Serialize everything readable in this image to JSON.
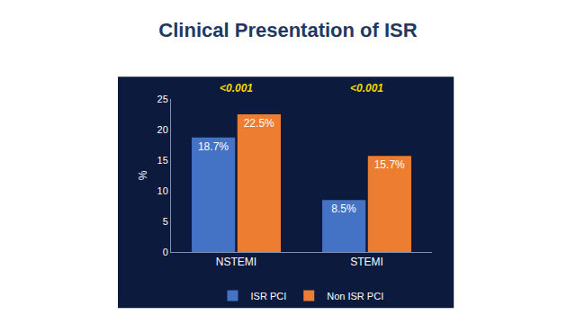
{
  "chart_data": {
    "type": "bar",
    "title": "Clinical Presentation of ISR",
    "y_label": "%",
    "categories": [
      "NSTEMI",
      "STEMI"
    ],
    "series": [
      {
        "name": "ISR PCI",
        "color": "#4472c4",
        "values": [
          18.7,
          8.5
        ],
        "value_labels": [
          "18.7%",
          "8.5%"
        ]
      },
      {
        "name": "Non ISR PCI",
        "color": "#ed7d31",
        "values": [
          22.5,
          15.7
        ],
        "value_labels": [
          "22.5%",
          "15.7%"
        ]
      }
    ],
    "annotations": [
      {
        "text": "<0.001",
        "category": "NSTEMI"
      },
      {
        "text": "<0.001",
        "category": "STEMI"
      }
    ],
    "ylim": [
      0,
      25
    ],
    "yticks": [
      0,
      5,
      10,
      15,
      20,
      25
    ],
    "grid": false,
    "legend": "bottom",
    "data_labels": true
  }
}
